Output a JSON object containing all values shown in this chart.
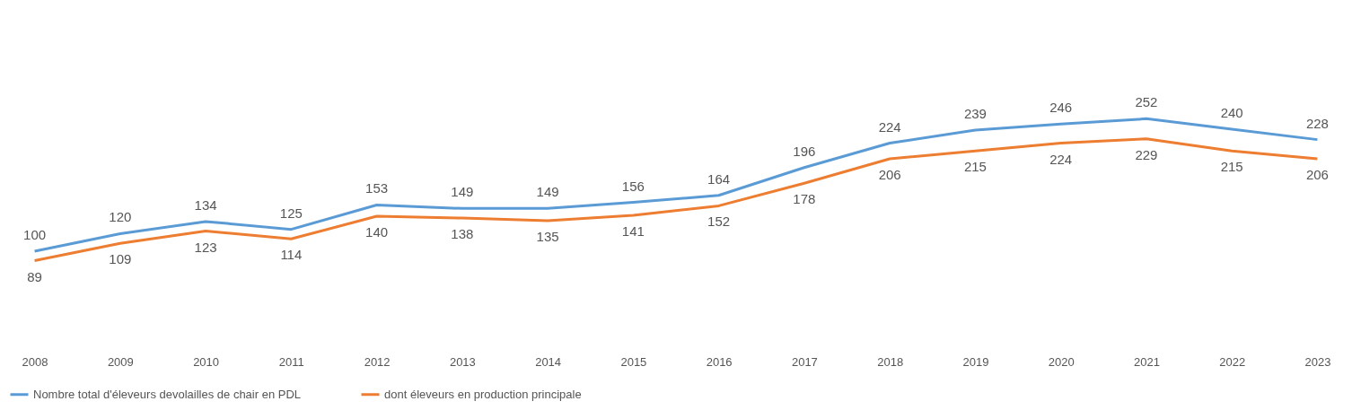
{
  "chart_data": {
    "type": "line",
    "categories": [
      "2008",
      "2009",
      "2010",
      "2011",
      "2012",
      "2013",
      "2014",
      "2015",
      "2016",
      "2017",
      "2018",
      "2019",
      "2020",
      "2021",
      "2022",
      "2023"
    ],
    "series": [
      {
        "name": "Nombre total d'éleveurs devolailles de chair en PDL",
        "color": "#5b9bd5",
        "values": [
          100,
          120,
          134,
          125,
          153,
          149,
          149,
          156,
          164,
          196,
          224,
          239,
          246,
          252,
          240,
          228
        ]
      },
      {
        "name": "dont éleveurs en production principale",
        "color": "#ed7d31",
        "values": [
          89,
          109,
          123,
          114,
          140,
          138,
          135,
          141,
          152,
          178,
          206,
          215,
          224,
          229,
          215,
          206
        ]
      }
    ],
    "data_labels": true,
    "grid": false,
    "legend": "bottom",
    "marker": "none",
    "line_style": "solid"
  }
}
